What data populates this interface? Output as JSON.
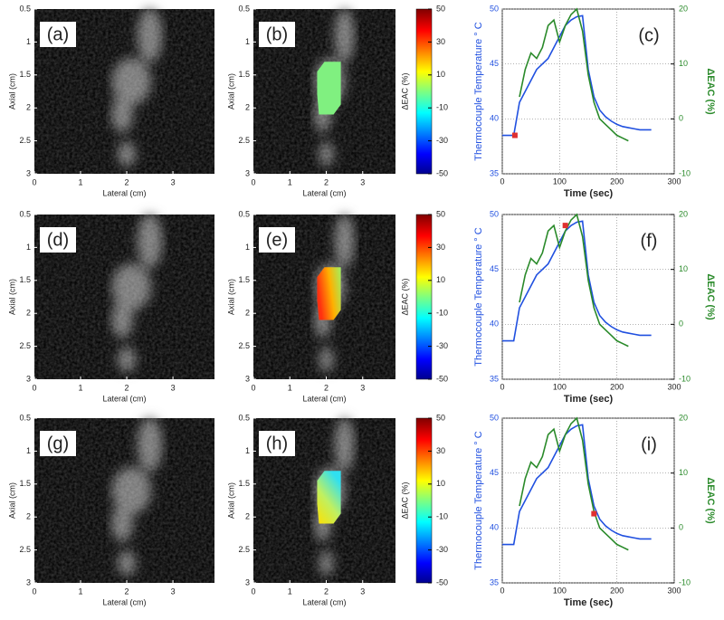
{
  "chart_data": [
    {
      "type": "image",
      "label": "(a)",
      "xlabel": "Lateral (cm)",
      "ylabel": "Axial (cm)",
      "xlim": [
        0,
        3.9
      ],
      "ylim": [
        3,
        0.5
      ],
      "xticks": [
        0,
        1,
        2,
        3
      ],
      "yticks": [
        0.5,
        1,
        1.5,
        2,
        2.5,
        3
      ]
    },
    {
      "type": "image",
      "label": "(b)",
      "xlabel": "Lateral (cm)",
      "ylabel": "Axial (cm)",
      "xlim": [
        0,
        3.9
      ],
      "ylim": [
        3,
        0.5
      ],
      "xticks": [
        0,
        1,
        2,
        3
      ],
      "yticks": [
        0.5,
        1,
        1.5,
        2,
        2.5,
        3
      ],
      "colorbar": {
        "label": "ΔEAC (%)",
        "lim": [
          -50,
          50
        ],
        "ticks": [
          -50,
          -30,
          -10,
          10,
          30,
          50
        ]
      }
    },
    {
      "type": "line",
      "label": "(c)",
      "xlabel": "Time (sec)",
      "ylabel": "Thermocouple Temperature ° C",
      "y2label": "ΔEAC (%)",
      "xlim": [
        0,
        300
      ],
      "xticks": [
        0,
        100,
        200,
        300
      ],
      "ylim": [
        35,
        50
      ],
      "yticks": [
        35,
        40,
        45,
        50
      ],
      "y2lim": [
        -10,
        20
      ],
      "y2ticks": [
        -10,
        0,
        10,
        20
      ],
      "grid": true,
      "x": [
        0,
        10,
        20,
        30,
        40,
        50,
        60,
        70,
        80,
        90,
        100,
        110,
        120,
        130,
        140,
        150,
        160,
        170,
        180,
        190,
        200,
        210,
        220,
        230,
        240,
        250,
        260
      ],
      "series": [
        {
          "color": "#2050e0",
          "values": [
            38.5,
            38.5,
            38.5,
            41.5,
            42.5,
            43.5,
            44.5,
            45,
            45.5,
            46.5,
            47.5,
            48.5,
            49,
            49.3,
            49.4,
            44.5,
            42,
            40.8,
            40.2,
            39.8,
            39.5,
            39.3,
            39.2,
            39.1,
            39,
            39,
            39
          ]
        },
        {
          "color": "#2a8a2a",
          "axis": "y2",
          "values": [
            null,
            null,
            null,
            4,
            9,
            12,
            11,
            13,
            17,
            18,
            14,
            17,
            19,
            20,
            16,
            8,
            3,
            0,
            -1,
            -2,
            -3,
            -3.5,
            -4,
            null,
            null,
            null,
            null
          ]
        }
      ],
      "marker": {
        "x": 22,
        "y": 38.5,
        "color": "#e03030"
      }
    },
    {
      "type": "image",
      "label": "(d)",
      "xlabel": "Lateral (cm)",
      "ylabel": "Axial (cm)",
      "xlim": [
        0,
        3.9
      ],
      "ylim": [
        3,
        0.5
      ],
      "xticks": [
        0,
        1,
        2,
        3
      ],
      "yticks": [
        0.5,
        1,
        1.5,
        2,
        2.5,
        3
      ]
    },
    {
      "type": "image",
      "label": "(e)",
      "xlabel": "Lateral (cm)",
      "ylabel": "Axial (cm)",
      "xlim": [
        0,
        3.9
      ],
      "ylim": [
        3,
        0.5
      ],
      "xticks": [
        0,
        1,
        2,
        3
      ],
      "yticks": [
        0.5,
        1,
        1.5,
        2,
        2.5,
        3
      ],
      "colorbar": {
        "label": "ΔEAC (%)",
        "lim": [
          -50,
          50
        ],
        "ticks": [
          -50,
          -30,
          -10,
          10,
          30,
          50
        ]
      }
    },
    {
      "type": "line",
      "label": "(f)",
      "xlabel": "Time (sec)",
      "ylabel": "Thermocouple Temperature ° C",
      "y2label": "ΔEAC (%)",
      "xlim": [
        0,
        300
      ],
      "xticks": [
        0,
        100,
        200,
        300
      ],
      "ylim": [
        35,
        50
      ],
      "yticks": [
        35,
        40,
        45,
        50
      ],
      "y2lim": [
        -10,
        20
      ],
      "y2ticks": [
        -10,
        0,
        10,
        20
      ],
      "grid": true,
      "x": [
        0,
        10,
        20,
        30,
        40,
        50,
        60,
        70,
        80,
        90,
        100,
        110,
        120,
        130,
        140,
        150,
        160,
        170,
        180,
        190,
        200,
        210,
        220,
        230,
        240,
        250,
        260
      ],
      "series": [
        {
          "color": "#2050e0",
          "values": [
            38.5,
            38.5,
            38.5,
            41.5,
            42.5,
            43.5,
            44.5,
            45,
            45.5,
            46.5,
            47.5,
            48.5,
            49,
            49.3,
            49.4,
            44.5,
            42,
            40.8,
            40.2,
            39.8,
            39.5,
            39.3,
            39.2,
            39.1,
            39,
            39,
            39
          ]
        },
        {
          "color": "#2a8a2a",
          "axis": "y2",
          "values": [
            null,
            null,
            null,
            4,
            9,
            12,
            11,
            13,
            17,
            18,
            14,
            17,
            19,
            20,
            16,
            8,
            3,
            0,
            -1,
            -2,
            -3,
            -3.5,
            -4,
            null,
            null,
            null,
            null
          ]
        }
      ],
      "marker": {
        "x": 110,
        "y": 49,
        "color": "#e03030"
      }
    },
    {
      "type": "image",
      "label": "(g)",
      "xlabel": "Lateral (cm)",
      "ylabel": "Axial (cm)",
      "xlim": [
        0,
        3.9
      ],
      "ylim": [
        3,
        0.5
      ],
      "xticks": [
        0,
        1,
        2,
        3
      ],
      "yticks": [
        0.5,
        1,
        1.5,
        2,
        2.5,
        3
      ]
    },
    {
      "type": "image",
      "label": "(h)",
      "xlabel": "Lateral (cm)",
      "ylabel": "Axial (cm)",
      "xlim": [
        0,
        3.9
      ],
      "ylim": [
        3,
        0.5
      ],
      "xticks": [
        0,
        1,
        2,
        3
      ],
      "yticks": [
        0.5,
        1,
        1.5,
        2,
        2.5,
        3
      ],
      "colorbar": {
        "label": "ΔEAC (%)",
        "lim": [
          -50,
          50
        ],
        "ticks": [
          -50,
          -30,
          -10,
          10,
          30,
          50
        ]
      }
    },
    {
      "type": "line",
      "label": "(i)",
      "xlabel": "Time (sec)",
      "ylabel": "Thermocouple Temperature ° C",
      "y2label": "ΔEAC (%)",
      "xlim": [
        0,
        300
      ],
      "xticks": [
        0,
        100,
        200,
        300
      ],
      "ylim": [
        35,
        50
      ],
      "yticks": [
        35,
        40,
        45,
        50
      ],
      "y2lim": [
        -10,
        20
      ],
      "y2ticks": [
        -10,
        0,
        10,
        20
      ],
      "grid": true,
      "x": [
        0,
        10,
        20,
        30,
        40,
        50,
        60,
        70,
        80,
        90,
        100,
        110,
        120,
        130,
        140,
        150,
        160,
        170,
        180,
        190,
        200,
        210,
        220,
        230,
        240,
        250,
        260
      ],
      "series": [
        {
          "color": "#2050e0",
          "values": [
            38.5,
            38.5,
            38.5,
            41.5,
            42.5,
            43.5,
            44.5,
            45,
            45.5,
            46.5,
            47.5,
            48.5,
            49,
            49.3,
            49.4,
            44.5,
            42,
            40.8,
            40.2,
            39.8,
            39.5,
            39.3,
            39.2,
            39.1,
            39,
            39,
            39
          ]
        },
        {
          "color": "#2a8a2a",
          "axis": "y2",
          "values": [
            null,
            null,
            null,
            4,
            9,
            12,
            11,
            13,
            17,
            18,
            14,
            17,
            19,
            20,
            16,
            8,
            3,
            0,
            -1,
            -2,
            -3,
            -3.5,
            -4,
            null,
            null,
            null,
            null
          ]
        }
      ],
      "marker": {
        "x": 160,
        "y": 41.3,
        "color": "#e03030"
      }
    }
  ]
}
